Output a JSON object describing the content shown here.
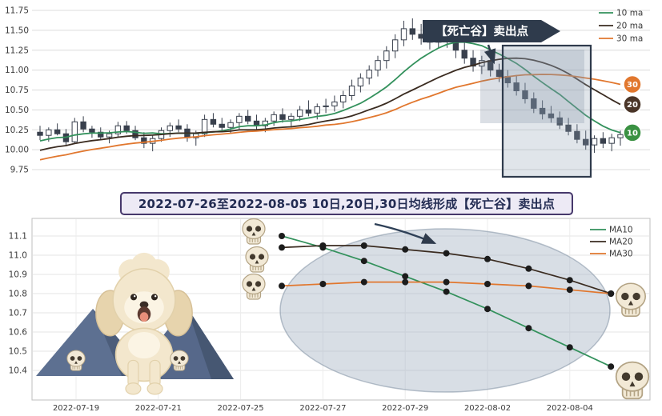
{
  "page": {
    "background": "#ffffff"
  },
  "banner": {
    "text": "2022-07-26至2022-08-05 10日,20日,30日均线形成【死亡谷】卖出点"
  },
  "chart_data": [
    {
      "type": "candlestick",
      "title": "",
      "ylim": [
        9.75,
        11.75
      ],
      "y_ticks": [
        9.75,
        10.0,
        10.25,
        10.5,
        10.75,
        11.0,
        11.25,
        11.5,
        11.75
      ],
      "grid": true,
      "legend_position": "upper right",
      "annotation": "【死亡谷】卖出点",
      "up_color": "#ffffff",
      "down_color": "#39404d",
      "wick_color": "#39404d",
      "series": [
        {
          "name": "10 ma",
          "window": 10,
          "color": "#33915c"
        },
        {
          "name": "20 ma",
          "window": 20,
          "color": "#3a2b20"
        },
        {
          "name": "30 ma",
          "window": 30,
          "color": "#e1772e"
        }
      ],
      "badges": [
        {
          "label": "30",
          "window": 30,
          "color": "#e1772e"
        },
        {
          "label": "20",
          "window": 20,
          "color": "#4a3528"
        },
        {
          "label": "10",
          "window": 10,
          "color": "#3a9142"
        }
      ],
      "candles_ohlc": [
        [
          10.22,
          10.3,
          10.12,
          10.18
        ],
        [
          10.18,
          10.28,
          10.1,
          10.25
        ],
        [
          10.25,
          10.33,
          10.18,
          10.2
        ],
        [
          10.2,
          10.26,
          10.05,
          10.1
        ],
        [
          10.1,
          10.4,
          10.08,
          10.35
        ],
        [
          10.35,
          10.42,
          10.22,
          10.26
        ],
        [
          10.26,
          10.3,
          10.15,
          10.22
        ],
        [
          10.22,
          10.28,
          10.12,
          10.16
        ],
        [
          10.16,
          10.24,
          10.08,
          10.2
        ],
        [
          10.2,
          10.35,
          10.15,
          10.3
        ],
        [
          10.3,
          10.36,
          10.2,
          10.24
        ],
        [
          10.24,
          10.3,
          10.12,
          10.15
        ],
        [
          10.15,
          10.22,
          10.02,
          10.08
        ],
        [
          10.08,
          10.18,
          9.98,
          10.14
        ],
        [
          10.14,
          10.28,
          10.1,
          10.24
        ],
        [
          10.24,
          10.34,
          10.16,
          10.3
        ],
        [
          10.3,
          10.38,
          10.22,
          10.26
        ],
        [
          10.26,
          10.32,
          10.1,
          10.15
        ],
        [
          10.15,
          10.24,
          10.05,
          10.2
        ],
        [
          10.2,
          10.44,
          10.16,
          10.38
        ],
        [
          10.38,
          10.46,
          10.28,
          10.32
        ],
        [
          10.32,
          10.4,
          10.22,
          10.28
        ],
        [
          10.28,
          10.38,
          10.2,
          10.34
        ],
        [
          10.34,
          10.46,
          10.26,
          10.42
        ],
        [
          10.42,
          10.5,
          10.32,
          10.36
        ],
        [
          10.36,
          10.44,
          10.24,
          10.3
        ],
        [
          10.3,
          10.4,
          10.22,
          10.36
        ],
        [
          10.36,
          10.48,
          10.3,
          10.44
        ],
        [
          10.44,
          10.52,
          10.34,
          10.38
        ],
        [
          10.38,
          10.46,
          10.28,
          10.42
        ],
        [
          10.42,
          10.55,
          10.36,
          10.5
        ],
        [
          10.5,
          10.62,
          10.42,
          10.46
        ],
        [
          10.46,
          10.58,
          10.38,
          10.54
        ],
        [
          10.54,
          10.64,
          10.46,
          10.55
        ],
        [
          10.55,
          10.68,
          10.48,
          10.6
        ],
        [
          10.6,
          10.74,
          10.52,
          10.68
        ],
        [
          10.68,
          10.88,
          10.62,
          10.8
        ],
        [
          10.8,
          10.96,
          10.72,
          10.9
        ],
        [
          10.9,
          11.06,
          10.82,
          11.0
        ],
        [
          11.0,
          11.18,
          10.92,
          11.12
        ],
        [
          11.12,
          11.3,
          11.02,
          11.24
        ],
        [
          11.24,
          11.45,
          11.15,
          11.38
        ],
        [
          11.38,
          11.62,
          11.3,
          11.52
        ],
        [
          11.52,
          11.65,
          11.38,
          11.45
        ],
        [
          11.45,
          11.58,
          11.32,
          11.4
        ],
        [
          11.4,
          11.52,
          11.26,
          11.35
        ],
        [
          11.35,
          11.5,
          11.28,
          11.42
        ],
        [
          11.42,
          11.55,
          11.28,
          11.36
        ],
        [
          11.36,
          11.45,
          11.15,
          11.25
        ],
        [
          11.25,
          11.35,
          11.08,
          11.15
        ],
        [
          11.15,
          11.25,
          10.98,
          11.05
        ],
        [
          11.05,
          11.18,
          10.95,
          11.12
        ],
        [
          11.12,
          11.2,
          10.92,
          11.0
        ],
        [
          11.0,
          11.08,
          10.85,
          10.92
        ],
        [
          10.92,
          11.0,
          10.78,
          10.84
        ],
        [
          10.84,
          10.94,
          10.68,
          10.74
        ],
        [
          10.74,
          10.84,
          10.58,
          10.64
        ],
        [
          10.64,
          10.72,
          10.46,
          10.52
        ],
        [
          10.52,
          10.62,
          10.38,
          10.45
        ],
        [
          10.45,
          10.55,
          10.34,
          10.4
        ],
        [
          10.4,
          10.48,
          10.26,
          10.31
        ],
        [
          10.31,
          10.4,
          10.18,
          10.23
        ],
        [
          10.23,
          10.32,
          10.08,
          10.13
        ],
        [
          10.13,
          10.24,
          10.0,
          10.06
        ],
        [
          10.06,
          10.18,
          9.96,
          10.14
        ],
        [
          10.14,
          10.22,
          10.02,
          10.08
        ],
        [
          10.08,
          10.2,
          9.98,
          10.15
        ],
        [
          10.15,
          10.24,
          10.05,
          10.19
        ]
      ]
    },
    {
      "type": "line",
      "ylim": [
        10.4,
        11.1
      ],
      "y_ticks": [
        10.4,
        10.5,
        10.6,
        10.7,
        10.8,
        10.9,
        11.0,
        11.1
      ],
      "grid": true,
      "legend_position": "upper right",
      "x_ticks": [
        {
          "index": 0,
          "label": "2022-07-19"
        },
        {
          "index": 2,
          "label": "2022-07-21"
        },
        {
          "index": 4,
          "label": "2022-07-25"
        },
        {
          "index": 6,
          "label": "2022-07-27"
        },
        {
          "index": 8,
          "label": "2022-07-29"
        },
        {
          "index": 10,
          "label": "2022-08-02"
        },
        {
          "index": 12,
          "label": "2022-08-04"
        }
      ],
      "dates": [
        "2022-07-26",
        "2022-07-27",
        "2022-07-28",
        "2022-07-29",
        "2022-08-01",
        "2022-08-02",
        "2022-08-03",
        "2022-08-04",
        "2022-08-05"
      ],
      "x_index": [
        5,
        6,
        7,
        8,
        9,
        10,
        11,
        12,
        13
      ],
      "marker_color": "#1c1c1c",
      "series": [
        {
          "name": "MA10",
          "color": "#33915c",
          "values": [
            11.1,
            11.04,
            10.97,
            10.89,
            10.81,
            10.72,
            10.62,
            10.52,
            10.42
          ]
        },
        {
          "name": "MA20",
          "color": "#3a2b20",
          "values": [
            11.04,
            11.05,
            11.05,
            11.03,
            11.01,
            10.98,
            10.93,
            10.87,
            10.8
          ]
        },
        {
          "name": "MA30",
          "color": "#e1772e",
          "values": [
            10.84,
            10.85,
            10.86,
            10.86,
            10.86,
            10.85,
            10.84,
            10.82,
            10.8
          ]
        }
      ]
    }
  ]
}
